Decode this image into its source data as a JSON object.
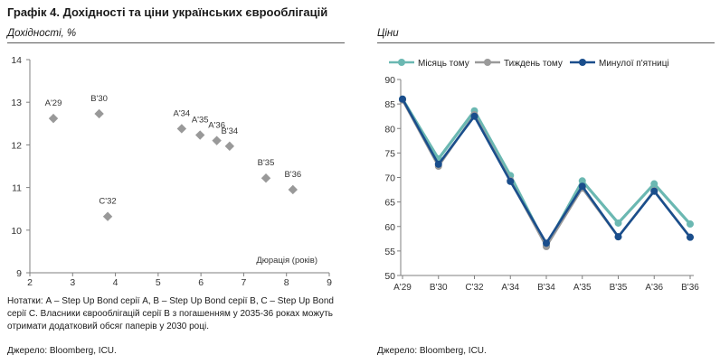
{
  "title": "Графік 4. Дохідності та ціни українських єврооблігацій",
  "note": "Нотатки: А – Step Up Bond серії А, В – Step Up Bond серії В, С – Step Up Bond серії С. Власники єврооблігацій серії В з погашенням у 2035-36 роках можуть отримати додатковий обсяг паперів у 2030 році.",
  "colors": {
    "scatter": "#999999",
    "series": [
      "#6bb8b2",
      "#9a9a9a",
      "#1a4e8c"
    ]
  },
  "chart_data": [
    {
      "type": "scatter",
      "title": "",
      "subtitle": "Дохідності, %",
      "xlabel": "Дюрація (років)",
      "ylabel": "",
      "xlim": [
        2,
        9
      ],
      "ylim": [
        9,
        14
      ],
      "xticks": [
        2,
        3,
        4,
        5,
        6,
        7,
        8,
        9
      ],
      "yticks": [
        9,
        10,
        11,
        12,
        13,
        14
      ],
      "grid": false,
      "points": [
        {
          "label": "A'29",
          "x": 2.55,
          "y": 12.62
        },
        {
          "label": "B'30",
          "x": 3.62,
          "y": 12.73
        },
        {
          "label": "C'32",
          "x": 3.82,
          "y": 10.32
        },
        {
          "label": "A'34",
          "x": 5.55,
          "y": 12.38
        },
        {
          "label": "A'35",
          "x": 5.98,
          "y": 12.23
        },
        {
          "label": "A'36",
          "x": 6.37,
          "y": 12.1
        },
        {
          "label": "B'34",
          "x": 6.67,
          "y": 11.97
        },
        {
          "label": "B'35",
          "x": 7.52,
          "y": 11.22
        },
        {
          "label": "B'36",
          "x": 8.15,
          "y": 10.95
        }
      ],
      "source": "Джерело: Bloomberg, ICU."
    },
    {
      "type": "line",
      "title": "",
      "subtitle": "Ціни",
      "categories": [
        "A'29",
        "B'30",
        "C'32",
        "A'34",
        "B'34",
        "A'35",
        "B'35",
        "A'36",
        "B'36"
      ],
      "ylim": [
        50,
        90
      ],
      "yticks": [
        50,
        55,
        60,
        65,
        70,
        75,
        80,
        85,
        90
      ],
      "grid": false,
      "legend": "top",
      "series": [
        {
          "name": "Місяць тому",
          "values": [
            86.0,
            73.8,
            83.6,
            70.4,
            56.0,
            69.3,
            60.7,
            68.7,
            60.5
          ]
        },
        {
          "name": "Тиждень тому",
          "values": [
            85.8,
            72.3,
            82.8,
            69.4,
            55.9,
            67.8,
            57.9,
            67.3,
            57.8
          ]
        },
        {
          "name": "Минулої п'ятниці",
          "values": [
            86.0,
            72.7,
            82.5,
            69.2,
            56.6,
            68.2,
            57.9,
            67.2,
            57.8
          ]
        }
      ],
      "source": "Джерело: Bloomberg, ICU."
    }
  ]
}
